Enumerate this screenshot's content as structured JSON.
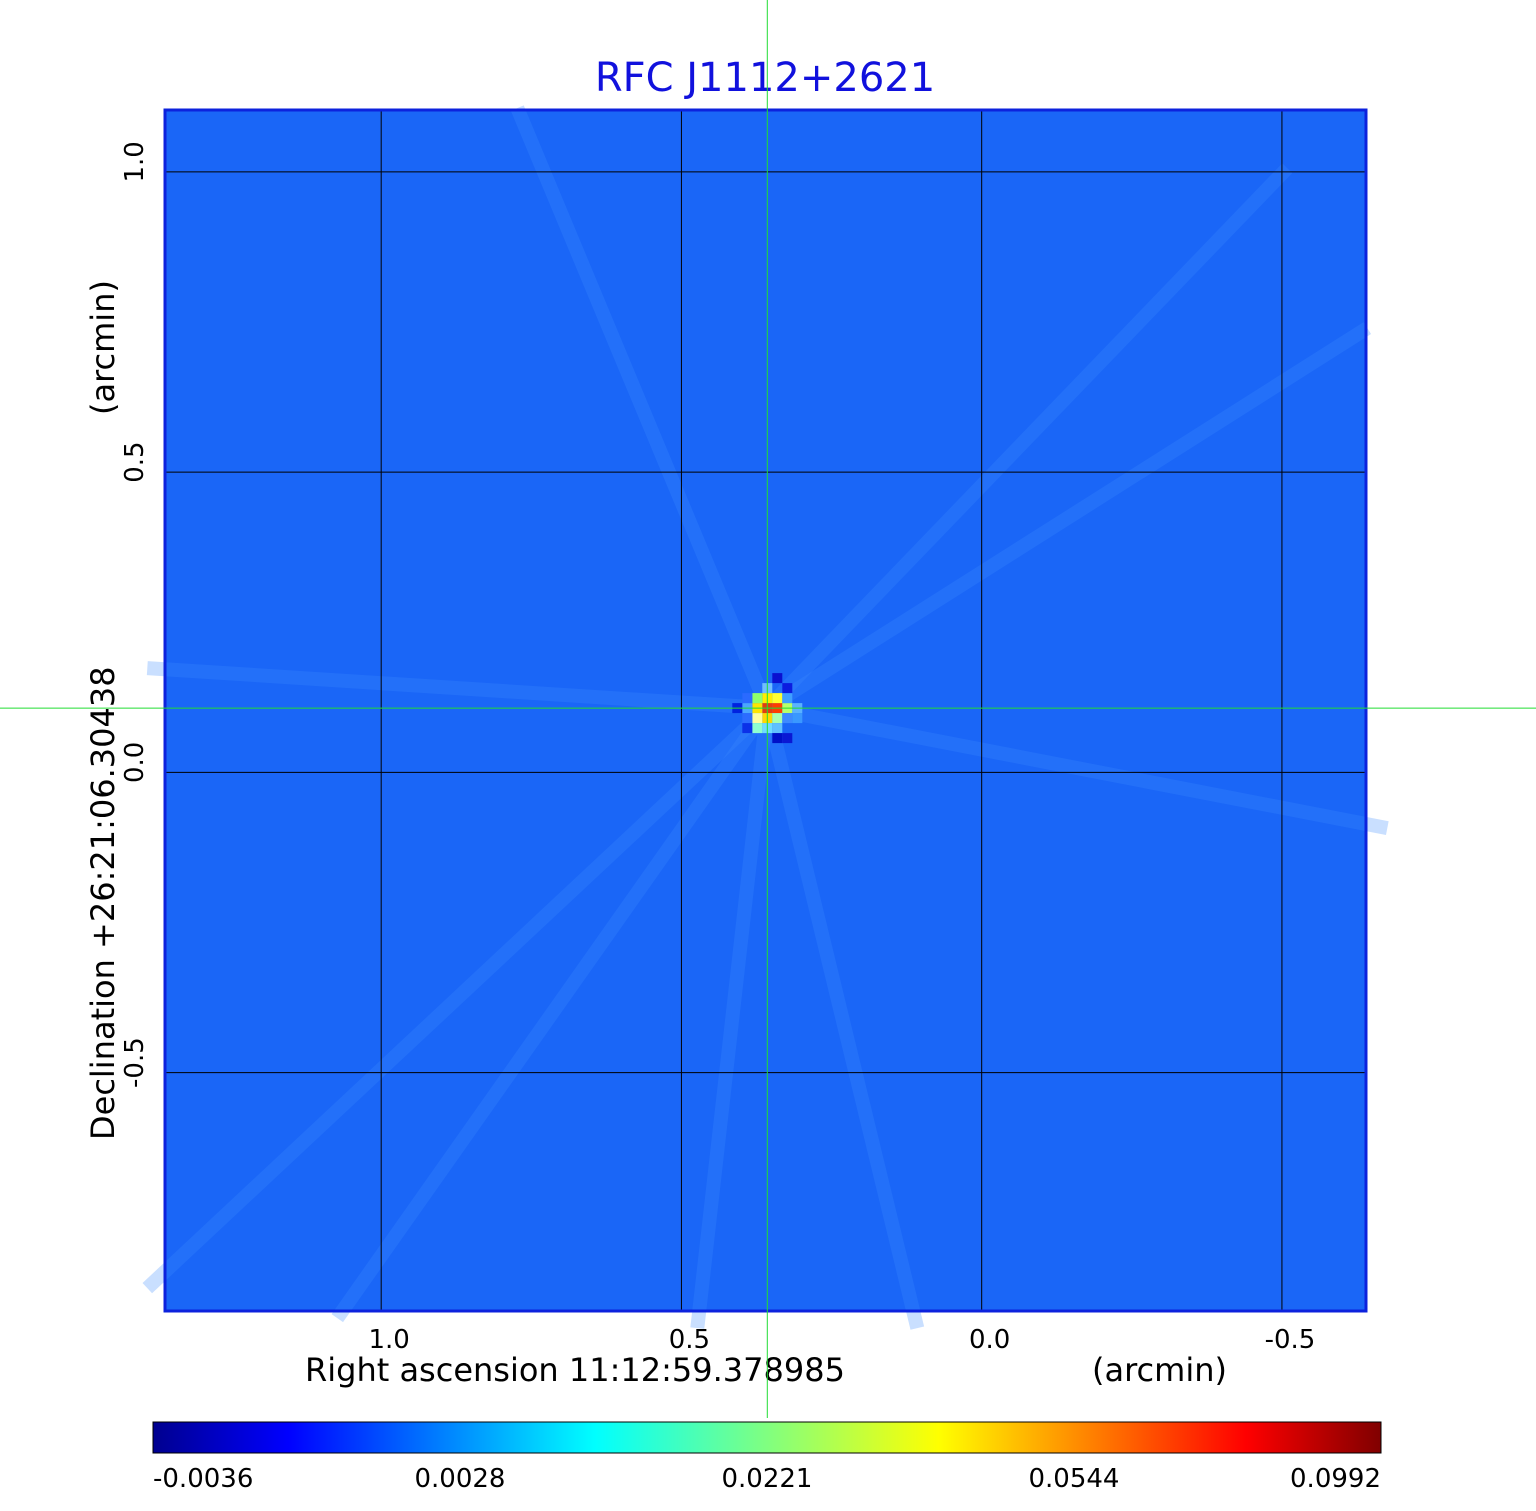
{
  "chart_data": {
    "type": "heatmap",
    "title": "RFC J1112+2621",
    "xlabel": "Right ascension  11:12:59.378985",
    "xlabel_unit": "(arcmin)",
    "ylabel": "Declination  +26:21:06.30438",
    "ylabel_unit": "(arcmin)",
    "x_ticks": [
      {
        "value": 1.0,
        "label": "1.0"
      },
      {
        "value": 0.5,
        "label": "0.5"
      },
      {
        "value": 0.0,
        "label": "0.0"
      },
      {
        "value": -0.5,
        "label": "-0.5"
      }
    ],
    "y_ticks": [
      {
        "value": 1.0,
        "label": "1.0"
      },
      {
        "value": 0.5,
        "label": "0.5"
      },
      {
        "value": 0.0,
        "label": "0.0"
      },
      {
        "value": -0.5,
        "label": "-0.5"
      }
    ],
    "xlim": [
      1.36,
      -0.64
    ],
    "ylim": [
      -0.897,
      1.103
    ],
    "grid": true,
    "crosshair": {
      "x": 0.357,
      "y": 0.107
    },
    "colorbar": {
      "colormap": "jet",
      "ticks": [
        "-0.0036",
        "0.0028",
        "0.0221",
        "0.0544",
        "0.0992"
      ]
    },
    "peak": {
      "x": 0.357,
      "y": 0.107,
      "value": 0.0992
    },
    "background_level": 0.0001
  }
}
